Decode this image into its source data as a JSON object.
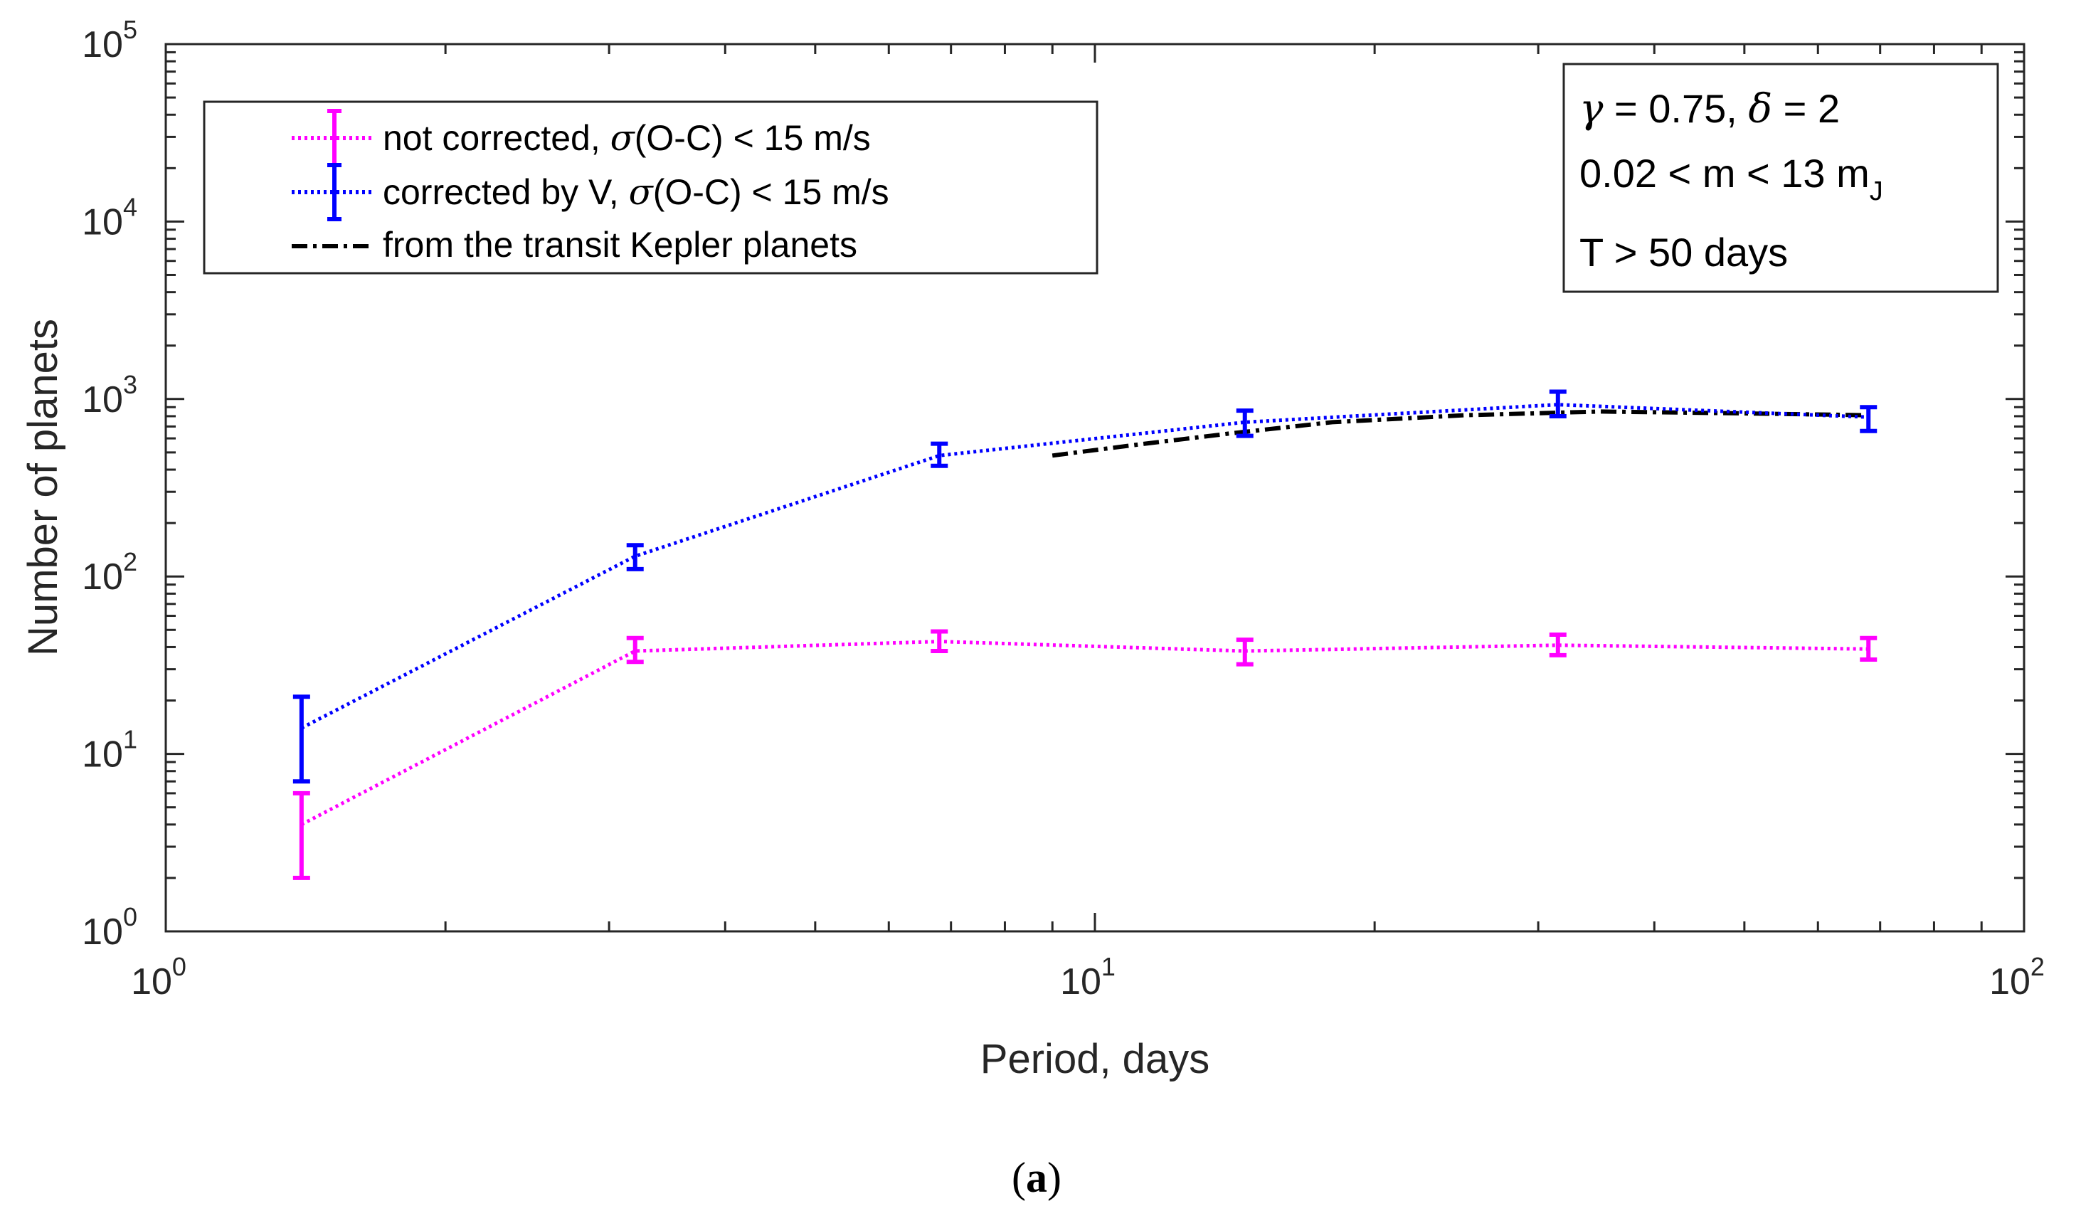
{
  "chart_data": {
    "type": "line",
    "xscale": "log",
    "yscale": "log",
    "xlim": [
      1,
      100
    ],
    "ylim": [
      1,
      100000
    ],
    "xlabel": "Period, days",
    "ylabel": "Number of planets",
    "x_ticks": [
      {
        "value": 1,
        "base": "10",
        "exp": "0"
      },
      {
        "value": 10,
        "base": "10",
        "exp": "1"
      },
      {
        "value": 100,
        "base": "10",
        "exp": "2"
      }
    ],
    "y_ticks": [
      {
        "value": 1,
        "base": "10",
        "exp": "0"
      },
      {
        "value": 10,
        "base": "10",
        "exp": "1"
      },
      {
        "value": 100,
        "base": "10",
        "exp": "2"
      },
      {
        "value": 1000,
        "base": "10",
        "exp": "3"
      },
      {
        "value": 10000,
        "base": "10",
        "exp": "4"
      },
      {
        "value": 100000,
        "base": "10",
        "exp": "5"
      }
    ],
    "series": [
      {
        "name": "not corrected",
        "color": "#ff00ff",
        "style": "dotted",
        "errorbars": true,
        "x": [
          1.4,
          3.2,
          6.8,
          14.5,
          31.5,
          68
        ],
        "y": [
          4,
          38,
          43,
          38,
          41,
          39
        ],
        "ylow": [
          2,
          33,
          38,
          32,
          36,
          34
        ],
        "yhigh": [
          6,
          45,
          49,
          44,
          47,
          45
        ]
      },
      {
        "name": "corrected by V",
        "color": "#0000ff",
        "style": "dotted",
        "errorbars": true,
        "x": [
          1.4,
          3.2,
          6.8,
          14.5,
          31.5,
          68
        ],
        "y": [
          14,
          130,
          480,
          740,
          930,
          790
        ],
        "ylow": [
          7,
          110,
          420,
          620,
          800,
          660
        ],
        "yhigh": [
          21,
          150,
          560,
          860,
          1100,
          900
        ]
      },
      {
        "name": "from the transit Kepler planets",
        "color": "#000000",
        "style": "dashdot",
        "errorbars": false,
        "x": [
          9,
          11,
          14,
          18,
          25,
          35,
          50,
          68
        ],
        "y": [
          480,
          550,
          640,
          740,
          810,
          850,
          830,
          810
        ]
      }
    ],
    "legend": {
      "position": "top-left",
      "entries": [
        {
          "text": "not corrected, ",
          "sigma": "σ",
          "rest": "(O-C) < 15 m/s",
          "color": "#ff00ff",
          "style": "dotted",
          "errorbar": true
        },
        {
          "text": "corrected by V, ",
          "sigma": "σ",
          "rest": "(O-C) < 15 m/s",
          "color": "#0000ff",
          "style": "dotted",
          "errorbar": true
        },
        {
          "text": "from the transit Kepler planets",
          "sigma": "",
          "rest": "",
          "color": "#000000",
          "style": "dashdot",
          "errorbar": false
        }
      ]
    },
    "annotation": {
      "position": "top-right",
      "line1": {
        "g": "γ",
        "g_rest": " = 0.75, ",
        "d": "δ",
        "d_rest": " = 2"
      },
      "line2": {
        "main": "0.02 < m < 13 m",
        "sub": "J"
      },
      "line3": "T > 50 days"
    },
    "caption": {
      "open": "(",
      "letter": "a",
      "close": ")"
    }
  }
}
